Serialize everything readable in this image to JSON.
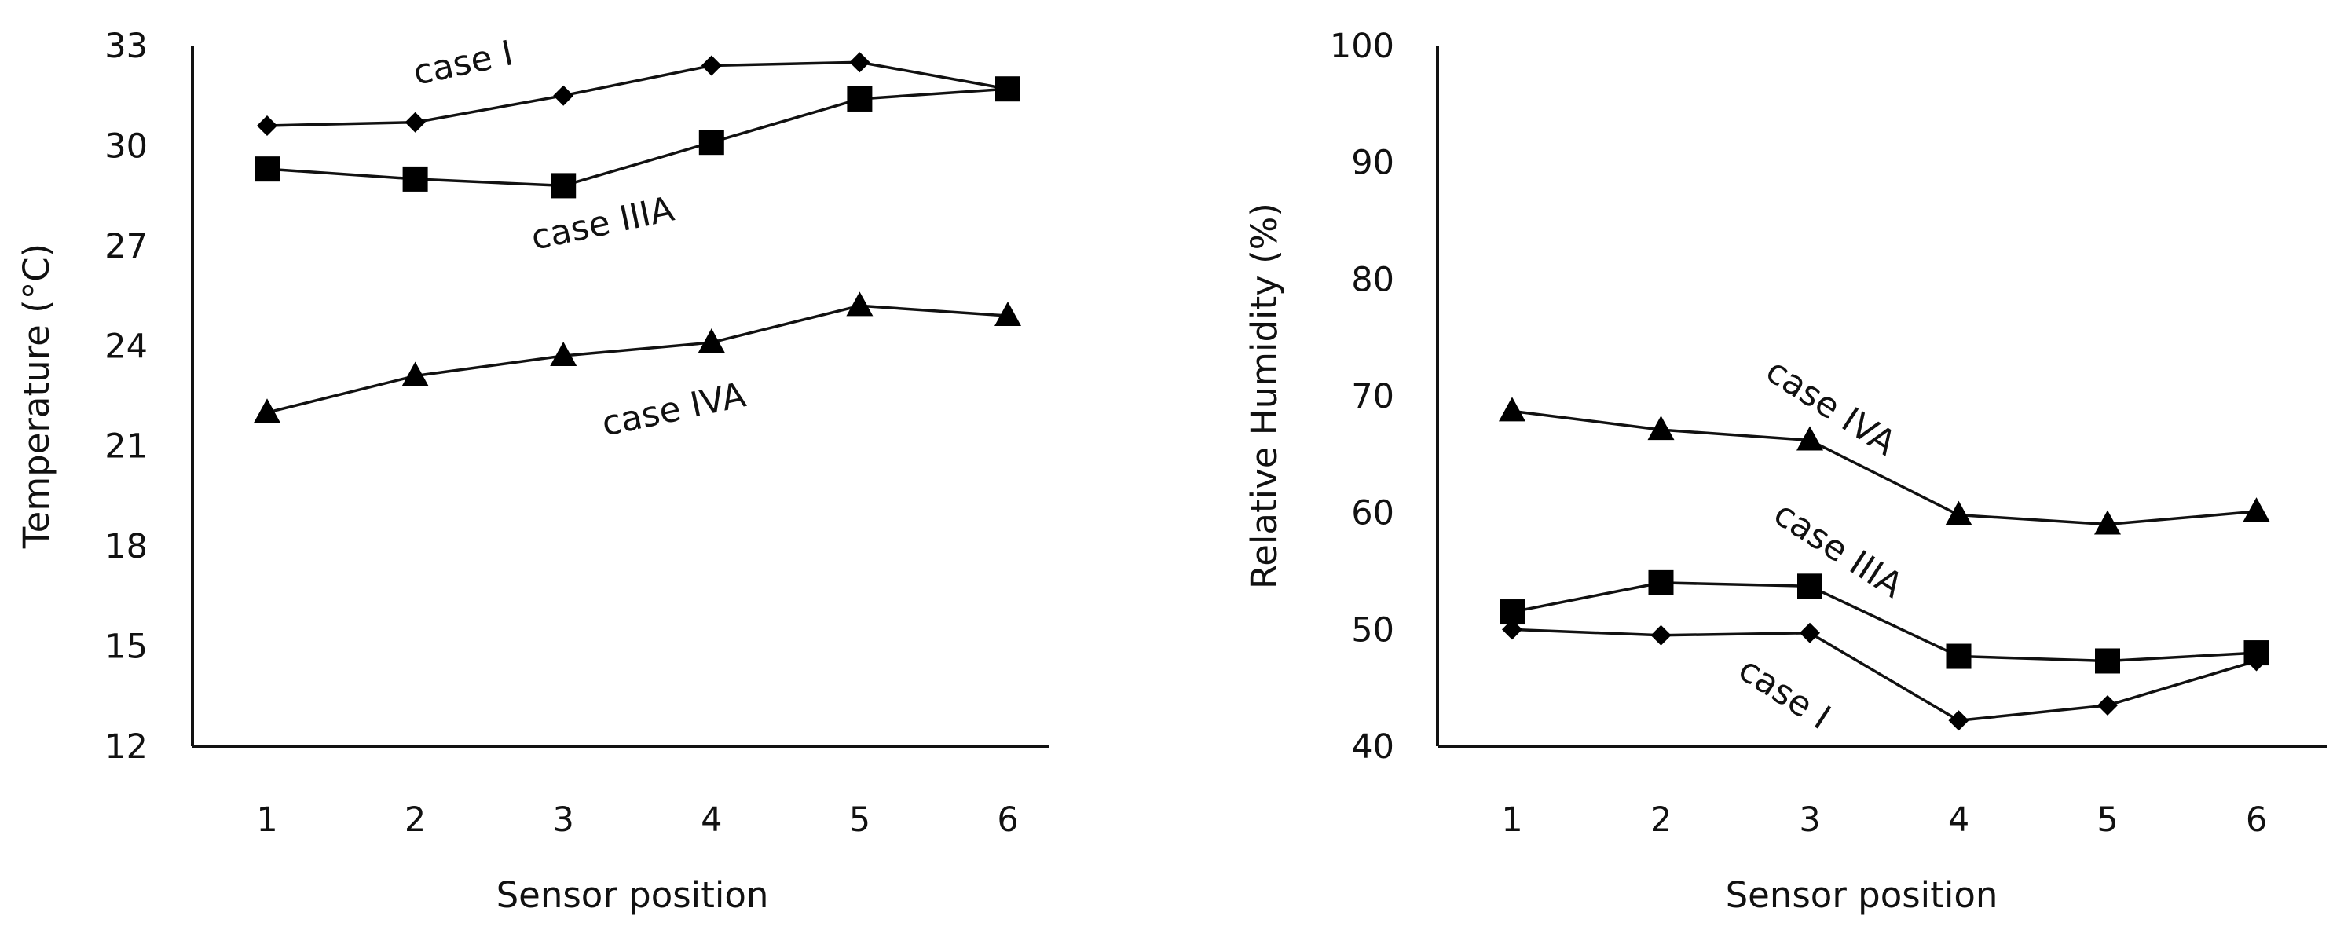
{
  "chart_data": [
    {
      "type": "line",
      "title": "",
      "xlabel": "Sensor position",
      "ylabel": "Temperature (°C)",
      "categories": [
        "1",
        "2",
        "3",
        "4",
        "5",
        "6"
      ],
      "ylim": [
        12,
        33
      ],
      "yticks": [
        "12",
        "15",
        "18",
        "21",
        "24",
        "27",
        "30",
        "33"
      ],
      "grid": false,
      "series": [
        {
          "name": "case I",
          "marker": "diamond",
          "values": [
            30.6,
            30.7,
            31.5,
            32.4,
            32.5,
            31.7
          ]
        },
        {
          "name": "case IIIA",
          "marker": "square",
          "values": [
            29.3,
            29.0,
            28.8,
            30.1,
            31.4,
            31.7
          ]
        },
        {
          "name": "case IVA",
          "marker": "triangle",
          "values": [
            22.0,
            23.1,
            23.7,
            24.1,
            25.2,
            24.9
          ]
        }
      ]
    },
    {
      "type": "line",
      "title": "",
      "xlabel": "Sensor position",
      "ylabel": "Relative Humidity (%)",
      "categories": [
        "1",
        "2",
        "3",
        "4",
        "5",
        "6"
      ],
      "ylim": [
        40,
        100
      ],
      "yticks": [
        "40",
        "50",
        "60",
        "70",
        "80",
        "90",
        "100"
      ],
      "grid": false,
      "series": [
        {
          "name": "case I",
          "marker": "diamond",
          "values": [
            50.0,
            49.5,
            49.7,
            42.2,
            43.5,
            47.3
          ]
        },
        {
          "name": "case IIIA",
          "marker": "square",
          "values": [
            51.5,
            54.0,
            53.7,
            47.7,
            47.3,
            48.0
          ]
        },
        {
          "name": "case IVA",
          "marker": "triangle",
          "values": [
            68.7,
            67.1,
            66.2,
            59.8,
            59.0,
            60.1
          ]
        }
      ]
    }
  ]
}
